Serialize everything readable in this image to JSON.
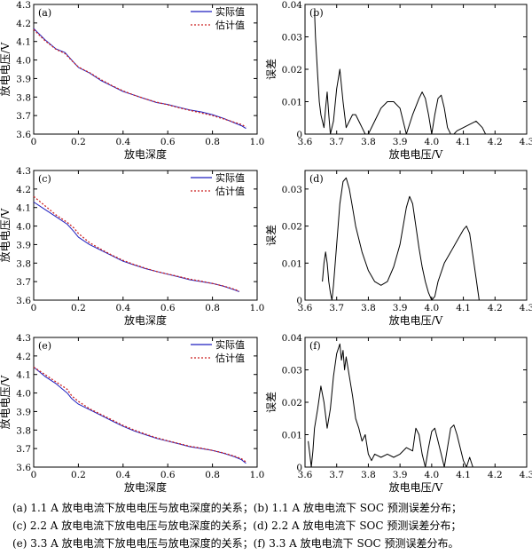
{
  "chart_data": [
    {
      "id": "a",
      "panel_label": "(a)",
      "type": "line",
      "xlabel": "放电深度",
      "ylabel": "放电电压/V",
      "xlim": [
        0,
        1.0
      ],
      "ylim": [
        3.6,
        4.3
      ],
      "xticks": [
        0,
        0.2,
        0.4,
        0.6,
        0.8,
        1.0
      ],
      "xtick_labels": [
        "0",
        "0.2",
        "0.4",
        "0.6",
        "0.8",
        "1.0"
      ],
      "yticks": [
        3.6,
        3.7,
        3.8,
        3.9,
        4.0,
        4.1,
        4.2,
        4.3
      ],
      "ytick_labels": [
        "3.6",
        "3.7",
        "3.8",
        "3.9",
        "4.0",
        "4.1",
        "4.2",
        "4.3"
      ],
      "legend": "top-right",
      "series": [
        {
          "name": "实际值",
          "color": "#1f1fbf",
          "style": "solid",
          "x": [
            0,
            0.05,
            0.1,
            0.14,
            0.17,
            0.2,
            0.25,
            0.3,
            0.35,
            0.4,
            0.45,
            0.5,
            0.55,
            0.6,
            0.65,
            0.7,
            0.75,
            0.8,
            0.85,
            0.9,
            0.93,
            0.95
          ],
          "y": [
            4.17,
            4.11,
            4.06,
            4.04,
            4.0,
            3.96,
            3.93,
            3.89,
            3.86,
            3.83,
            3.81,
            3.79,
            3.77,
            3.76,
            3.745,
            3.73,
            3.72,
            3.705,
            3.685,
            3.66,
            3.645,
            3.63
          ]
        },
        {
          "name": "估计值",
          "color": "#cc2222",
          "style": "dotted",
          "x": [
            0,
            0.05,
            0.1,
            0.14,
            0.17,
            0.2,
            0.25,
            0.3,
            0.35,
            0.4,
            0.45,
            0.5,
            0.55,
            0.6,
            0.65,
            0.7,
            0.75,
            0.8,
            0.85,
            0.9,
            0.93,
            0.95
          ],
          "y": [
            4.165,
            4.105,
            4.058,
            4.035,
            3.998,
            3.962,
            3.932,
            3.895,
            3.862,
            3.833,
            3.81,
            3.79,
            3.772,
            3.758,
            3.742,
            3.728,
            3.714,
            3.7,
            3.682,
            3.663,
            3.652,
            3.638
          ]
        }
      ]
    },
    {
      "id": "b",
      "panel_label": "(b)",
      "type": "line",
      "xlabel": "放电电压/V",
      "ylabel": "误差",
      "xlim": [
        3.6,
        4.3
      ],
      "ylim": [
        0,
        0.04
      ],
      "xticks": [
        3.6,
        3.7,
        3.8,
        3.9,
        4.0,
        4.1,
        4.2,
        4.3
      ],
      "xtick_labels": [
        "3.6",
        "3.7",
        "3.8",
        "3.9",
        "4.0",
        "4.1",
        "4.2",
        "4.3"
      ],
      "yticks": [
        0,
        0.01,
        0.02,
        0.03,
        0.04
      ],
      "ytick_labels": [
        "0",
        "0.01",
        "0.02",
        "0.03",
        "0.04"
      ],
      "series": [
        {
          "color": "#000000",
          "style": "solid",
          "x": [
            3.63,
            3.633,
            3.64,
            3.645,
            3.65,
            3.655,
            3.66,
            3.665,
            3.67,
            3.675,
            3.68,
            3.69,
            3.7,
            3.71,
            3.72,
            3.73,
            3.74,
            3.75,
            3.76,
            3.77,
            3.78,
            3.79,
            3.8,
            3.82,
            3.84,
            3.86,
            3.88,
            3.9,
            3.91,
            3.92,
            3.94,
            3.96,
            3.97,
            3.98,
            3.99,
            4.0,
            4.01,
            4.02,
            4.03,
            4.04,
            4.05,
            4.06,
            4.07,
            4.08,
            4.1,
            4.12,
            4.14,
            4.16,
            4.17
          ],
          "y": [
            0.038,
            0.03,
            0.018,
            0.01,
            0.006,
            0.004,
            0.002,
            0.008,
            0.013,
            0.006,
            0.0,
            0.004,
            0.014,
            0.02,
            0.01,
            0.002,
            0.004,
            0.006,
            0.006,
            0.004,
            0.002,
            0.0,
            0.0,
            0.004,
            0.008,
            0.01,
            0.01,
            0.008,
            0.004,
            0.0,
            0.006,
            0.011,
            0.013,
            0.011,
            0.006,
            0.0,
            0.006,
            0.011,
            0.012,
            0.008,
            0.002,
            0.0,
            0.0,
            0.001,
            0.002,
            0.003,
            0.004,
            0.002,
            0.0
          ]
        }
      ]
    },
    {
      "id": "c",
      "panel_label": "(c)",
      "type": "line",
      "xlabel": "放电深度",
      "ylabel": "放电电压/V",
      "xlim": [
        0,
        1.0
      ],
      "ylim": [
        3.6,
        4.3
      ],
      "xticks": [
        0,
        0.2,
        0.4,
        0.6,
        0.8,
        1.0
      ],
      "xtick_labels": [
        "0",
        "0.2",
        "0.4",
        "0.6",
        "0.8",
        "1.0"
      ],
      "yticks": [
        3.6,
        3.7,
        3.8,
        3.9,
        4.0,
        4.1,
        4.2,
        4.3
      ],
      "ytick_labels": [
        "3.6",
        "3.7",
        "3.8",
        "3.9",
        "4.0",
        "4.1",
        "4.2",
        "4.3"
      ],
      "legend": "top-right",
      "series": [
        {
          "name": "实际值",
          "color": "#1f1fbf",
          "style": "solid",
          "x": [
            0,
            0.05,
            0.1,
            0.15,
            0.18,
            0.2,
            0.25,
            0.3,
            0.35,
            0.4,
            0.45,
            0.5,
            0.55,
            0.6,
            0.65,
            0.7,
            0.75,
            0.8,
            0.85,
            0.9,
            0.92
          ],
          "y": [
            4.13,
            4.09,
            4.05,
            4.01,
            3.97,
            3.94,
            3.9,
            3.87,
            3.84,
            3.81,
            3.79,
            3.77,
            3.755,
            3.74,
            3.725,
            3.71,
            3.7,
            3.69,
            3.675,
            3.655,
            3.645
          ]
        },
        {
          "name": "估计值",
          "color": "#cc2222",
          "style": "dotted",
          "x": [
            0,
            0.05,
            0.1,
            0.15,
            0.18,
            0.2,
            0.25,
            0.3,
            0.35,
            0.4,
            0.45,
            0.5,
            0.55,
            0.6,
            0.65,
            0.7,
            0.75,
            0.8,
            0.85,
            0.9,
            0.92
          ],
          "y": [
            4.16,
            4.11,
            4.06,
            4.02,
            3.99,
            3.96,
            3.91,
            3.875,
            3.843,
            3.815,
            3.792,
            3.772,
            3.755,
            3.741,
            3.727,
            3.713,
            3.702,
            3.69,
            3.676,
            3.658,
            3.648
          ]
        }
      ]
    },
    {
      "id": "d",
      "panel_label": "(d)",
      "type": "line",
      "xlabel": "放电电压/V",
      "ylabel": "误差",
      "xlim": [
        3.6,
        4.3
      ],
      "ylim": [
        0,
        0.035
      ],
      "xticks": [
        3.6,
        3.7,
        3.8,
        3.9,
        4.0,
        4.1,
        4.2,
        4.3
      ],
      "xtick_labels": [
        "3.6",
        "3.7",
        "3.8",
        "3.9",
        "4.0",
        "4.1",
        "4.2",
        "4.3"
      ],
      "yticks": [
        0,
        0.01,
        0.02,
        0.03
      ],
      "ytick_labels": [
        "0",
        "0.01",
        "0.02",
        "0.03"
      ],
      "series": [
        {
          "color": "#000000",
          "style": "solid",
          "x": [
            3.655,
            3.66,
            3.665,
            3.67,
            3.675,
            3.68,
            3.685,
            3.69,
            3.7,
            3.71,
            3.72,
            3.73,
            3.74,
            3.75,
            3.76,
            3.78,
            3.8,
            3.82,
            3.84,
            3.86,
            3.88,
            3.9,
            3.92,
            3.93,
            3.94,
            3.95,
            3.96,
            3.97,
            3.98,
            3.99,
            4.0,
            4.01,
            4.02,
            4.04,
            4.06,
            4.08,
            4.1,
            4.11,
            4.12,
            4.13,
            4.14,
            4.15
          ],
          "y": [
            0.005,
            0.01,
            0.013,
            0.01,
            0.005,
            0.002,
            0.0,
            0.004,
            0.015,
            0.026,
            0.032,
            0.033,
            0.03,
            0.025,
            0.02,
            0.013,
            0.008,
            0.005,
            0.004,
            0.005,
            0.009,
            0.015,
            0.025,
            0.028,
            0.026,
            0.02,
            0.014,
            0.009,
            0.005,
            0.002,
            0.0,
            0.001,
            0.005,
            0.01,
            0.013,
            0.016,
            0.019,
            0.02,
            0.018,
            0.012,
            0.006,
            0.0
          ]
        }
      ]
    },
    {
      "id": "e",
      "panel_label": "(e)",
      "type": "line",
      "xlabel": "放电深度",
      "ylabel": "放电电压/V",
      "xlim": [
        0,
        1.0
      ],
      "ylim": [
        3.6,
        4.3
      ],
      "xticks": [
        0,
        0.2,
        0.4,
        0.6,
        0.8,
        1.0
      ],
      "xtick_labels": [
        "0",
        "0.2",
        "0.4",
        "0.6",
        "0.8",
        "1.0"
      ],
      "yticks": [
        3.6,
        3.7,
        3.8,
        3.9,
        4.0,
        4.1,
        4.2,
        4.3
      ],
      "ytick_labels": [
        "3.6",
        "3.7",
        "3.8",
        "3.9",
        "4.0",
        "4.1",
        "4.2",
        "4.3"
      ],
      "legend": "top-right",
      "series": [
        {
          "name": "实际值",
          "color": "#1f1fbf",
          "style": "solid",
          "x": [
            0,
            0.05,
            0.1,
            0.15,
            0.17,
            0.2,
            0.25,
            0.3,
            0.35,
            0.4,
            0.45,
            0.5,
            0.55,
            0.6,
            0.65,
            0.7,
            0.75,
            0.8,
            0.85,
            0.9,
            0.93,
            0.95
          ],
          "y": [
            4.14,
            4.09,
            4.05,
            4.0,
            3.97,
            3.94,
            3.91,
            3.88,
            3.85,
            3.82,
            3.795,
            3.775,
            3.755,
            3.74,
            3.725,
            3.71,
            3.7,
            3.69,
            3.675,
            3.655,
            3.64,
            3.62
          ]
        },
        {
          "name": "估计值",
          "color": "#cc2222",
          "style": "dotted",
          "x": [
            0,
            0.05,
            0.1,
            0.15,
            0.17,
            0.2,
            0.25,
            0.3,
            0.35,
            0.4,
            0.45,
            0.5,
            0.55,
            0.6,
            0.65,
            0.7,
            0.75,
            0.8,
            0.85,
            0.9,
            0.93,
            0.95
          ],
          "y": [
            4.14,
            4.1,
            4.06,
            4.02,
            3.985,
            3.955,
            3.915,
            3.885,
            3.855,
            3.825,
            3.8,
            3.778,
            3.758,
            3.742,
            3.727,
            3.712,
            3.702,
            3.69,
            3.676,
            3.658,
            3.645,
            3.628
          ]
        }
      ]
    },
    {
      "id": "f",
      "panel_label": "(f)",
      "type": "line",
      "xlabel": "放电电压/V",
      "ylabel": "误差",
      "xlim": [
        3.6,
        4.3
      ],
      "ylim": [
        0,
        0.04
      ],
      "xticks": [
        3.6,
        3.7,
        3.8,
        3.9,
        4.0,
        4.1,
        4.2,
        4.3
      ],
      "xtick_labels": [
        "3.6",
        "3.7",
        "3.8",
        "3.9",
        "4.0",
        "4.1",
        "4.2",
        "4.3"
      ],
      "yticks": [
        0,
        0.01,
        0.02,
        0.03,
        0.04
      ],
      "ytick_labels": [
        "0",
        "0.01",
        "0.02",
        "0.03",
        "0.04"
      ],
      "series": [
        {
          "color": "#000000",
          "style": "solid",
          "x": [
            3.61,
            3.615,
            3.62,
            3.625,
            3.63,
            3.64,
            3.65,
            3.66,
            3.67,
            3.68,
            3.69,
            3.7,
            3.71,
            3.715,
            3.72,
            3.725,
            3.73,
            3.74,
            3.75,
            3.76,
            3.77,
            3.78,
            3.79,
            3.8,
            3.81,
            3.82,
            3.84,
            3.86,
            3.88,
            3.9,
            3.92,
            3.94,
            3.95,
            3.96,
            3.97,
            3.98,
            3.99,
            4.0,
            4.01,
            4.02,
            4.03,
            4.04,
            4.05,
            4.06,
            4.07,
            4.08,
            4.09,
            4.1,
            4.11,
            4.12,
            4.13
          ],
          "y": [
            0.008,
            0.004,
            0.0,
            0.005,
            0.012,
            0.018,
            0.025,
            0.02,
            0.012,
            0.018,
            0.028,
            0.035,
            0.038,
            0.033,
            0.036,
            0.03,
            0.034,
            0.028,
            0.022,
            0.015,
            0.012,
            0.008,
            0.01,
            0.004,
            0.002,
            0.004,
            0.003,
            0.004,
            0.003,
            0.004,
            0.006,
            0.005,
            0.012,
            0.01,
            0.004,
            0.0,
            0.006,
            0.011,
            0.012,
            0.008,
            0.004,
            0.0,
            0.006,
            0.012,
            0.013,
            0.01,
            0.006,
            0.002,
            0.0,
            0.003,
            0.0
          ]
        }
      ]
    }
  ],
  "captions": [
    "(a) 1.1 A 放电电流下放电电压与放电深度的关系；(b) 1.1 A 放电电流下 SOC 预测误差分布；",
    "(c) 2.2 A 放电电流下放电电压与放电深度的关系；(d) 2.2 A 放电电流下 SOC 预测误差分布；",
    "(e) 3.3 A 放电电流下放电电压与放电深度的关系；(f) 3.3 A 放电电流下 SOC 预测误差分布。"
  ]
}
